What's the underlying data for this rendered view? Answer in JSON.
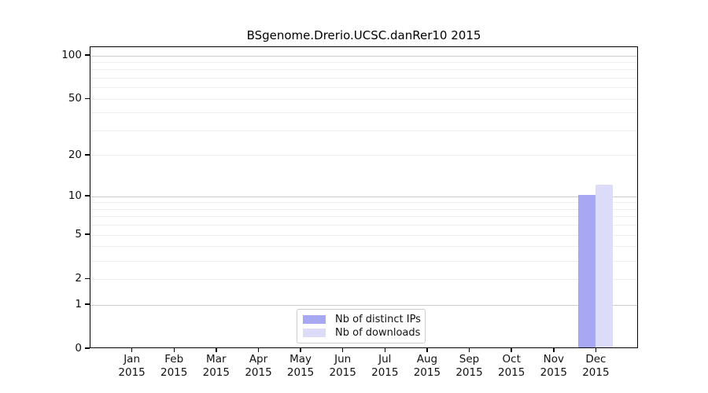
{
  "chart_data": {
    "type": "bar",
    "title": "BSgenome.Drerio.UCSC.danRer10 2015",
    "categories": [
      "Jan",
      "Feb",
      "Mar",
      "Apr",
      "May",
      "Jun",
      "Jul",
      "Aug",
      "Sep",
      "Oct",
      "Nov",
      "Dec"
    ],
    "category_year": "2015",
    "series": [
      {
        "name": "Nb of distinct IPs",
        "color": "#a8a8f2",
        "values": [
          0,
          0,
          0,
          0,
          0,
          0,
          0,
          0,
          0,
          0,
          0,
          10
        ]
      },
      {
        "name": "Nb of downloads",
        "color": "#dcdcf9",
        "values": [
          0,
          0,
          0,
          0,
          0,
          0,
          0,
          0,
          0,
          0,
          0,
          12
        ]
      }
    ],
    "y_axis": {
      "scale": "log1p",
      "tick_values": [
        0,
        1,
        2,
        5,
        10,
        20,
        50,
        100
      ],
      "tick_labels": [
        "0",
        "1",
        "2",
        "5",
        "10",
        "20",
        "50",
        "100"
      ],
      "major_gridlines": [
        1,
        10,
        100
      ],
      "minor_gridlines": [
        2,
        3,
        4,
        5,
        6,
        7,
        8,
        9,
        20,
        30,
        40,
        50,
        60,
        70,
        80,
        90
      ],
      "top_value": 100
    },
    "legend_position": "bottom-center-inside",
    "grid": true
  },
  "style": {
    "major_grid_color": "#cccccc",
    "minor_grid_color": "#eeeeee",
    "axis_color": "#000000",
    "background": "#ffffff"
  }
}
